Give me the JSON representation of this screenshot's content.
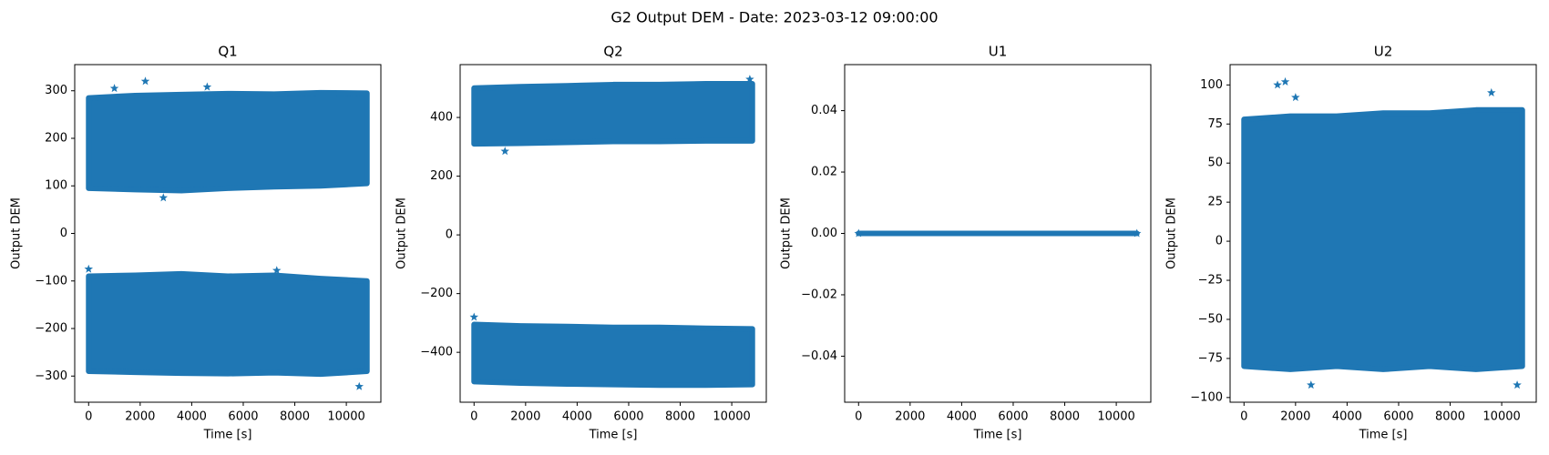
{
  "title": "G2 Output DEM - Date: 2023-03-12 09:00:00",
  "chart_data": [
    {
      "type": "scatter",
      "title": "Q1",
      "xlabel": "Time [s]",
      "ylabel": "Output DEM",
      "color": "#1f77b4",
      "marker": "star",
      "xlim": [
        -540,
        11340
      ],
      "xticks": [
        0,
        2000,
        4000,
        6000,
        8000,
        10000
      ],
      "ylim": [
        -355,
        355
      ],
      "yticks": [
        {
          "value": -300,
          "label": "−300"
        },
        {
          "value": -200,
          "label": "−200"
        },
        {
          "value": -100,
          "label": "−100"
        },
        0,
        100,
        200,
        300
      ],
      "bands": [
        {
          "x": [
            0,
            1800,
            3600,
            5400,
            7200,
            9000,
            10800
          ],
          "low": [
            95,
            92,
            90,
            95,
            98,
            100,
            105
          ],
          "high": [
            285,
            290,
            292,
            294,
            293,
            296,
            295
          ]
        },
        {
          "x": [
            0,
            1800,
            3600,
            5400,
            7200,
            9000,
            10800
          ],
          "low": [
            -290,
            -292,
            -294,
            -295,
            -293,
            -296,
            -290
          ],
          "high": [
            -90,
            -88,
            -85,
            -90,
            -88,
            -95,
            -100
          ]
        }
      ],
      "points": {
        "x": [
          2200,
          4600,
          1000,
          2900,
          7300,
          10500,
          0
        ],
        "y": [
          320,
          308,
          305,
          75,
          -78,
          -322,
          -75
        ]
      }
    },
    {
      "type": "scatter",
      "title": "Q2",
      "xlabel": "Time [s]",
      "ylabel": "Output DEM",
      "color": "#1f77b4",
      "marker": "star",
      "xlim": [
        -540,
        11340
      ],
      "xticks": [
        0,
        2000,
        4000,
        6000,
        8000,
        10000
      ],
      "ylim": [
        -570,
        580
      ],
      "yticks": [
        {
          "value": -400,
          "label": "−400"
        },
        {
          "value": -200,
          "label": "−200"
        },
        0,
        200,
        400
      ],
      "bands": [
        {
          "x": [
            0,
            1800,
            3600,
            5400,
            7200,
            9000,
            10800
          ],
          "low": [
            310,
            312,
            315,
            318,
            318,
            320,
            320
          ],
          "high": [
            500,
            505,
            508,
            512,
            512,
            515,
            515
          ]
        },
        {
          "x": [
            0,
            1800,
            3600,
            5400,
            7200,
            9000,
            10800
          ],
          "low": [
            -500,
            -505,
            -508,
            -510,
            -512,
            -512,
            -510
          ],
          "high": [
            -305,
            -310,
            -312,
            -315,
            -315,
            -318,
            -320
          ]
        }
      ],
      "points": {
        "x": [
          10700,
          1200,
          0
        ],
        "y": [
          530,
          285,
          -280
        ]
      }
    },
    {
      "type": "scatter",
      "title": "U1",
      "xlabel": "Time [s]",
      "ylabel": "Output DEM",
      "color": "#1f77b4",
      "marker": "star",
      "xlim": [
        -540,
        11340
      ],
      "xticks": [
        0,
        2000,
        4000,
        6000,
        8000,
        10000
      ],
      "ylim": [
        -0.055,
        0.055
      ],
      "yticks": [
        {
          "value": -0.04,
          "label": "−0.04"
        },
        {
          "value": -0.02,
          "label": "−0.02"
        },
        {
          "value": 0,
          "label": "0.00"
        },
        {
          "value": 0.02,
          "label": "0.02"
        },
        {
          "value": 0.04,
          "label": "0.04"
        }
      ],
      "bands": [
        {
          "x": [
            0,
            1800,
            3600,
            5400,
            7200,
            9000,
            10800
          ],
          "low": [
            0,
            0,
            0,
            0,
            0,
            0,
            0
          ],
          "high": [
            0,
            0,
            0,
            0,
            0,
            0,
            0
          ]
        }
      ],
      "points": {
        "x": [
          0,
          10800
        ],
        "y": [
          0,
          0
        ]
      }
    },
    {
      "type": "scatter",
      "title": "U2",
      "xlabel": "Time [s]",
      "ylabel": "Output DEM",
      "color": "#1f77b4",
      "marker": "star",
      "xlim": [
        -540,
        11340
      ],
      "xticks": [
        0,
        2000,
        4000,
        6000,
        8000,
        10000
      ],
      "ylim": [
        -103,
        113
      ],
      "yticks": [
        {
          "value": -100,
          "label": "−100"
        },
        {
          "value": -75,
          "label": "−75"
        },
        {
          "value": -50,
          "label": "−50"
        },
        {
          "value": -25,
          "label": "−25"
        },
        0,
        25,
        50,
        75,
        100
      ],
      "bands": [
        {
          "x": [
            0,
            1800,
            3600,
            5400,
            7200,
            9000,
            10800
          ],
          "low": [
            -80,
            -82,
            -80,
            -82,
            -80,
            -82,
            -80
          ],
          "high": [
            78,
            80,
            80,
            82,
            82,
            84,
            84
          ]
        }
      ],
      "points": {
        "x": [
          1300,
          1600,
          2000,
          9600,
          2600,
          10600
        ],
        "y": [
          100,
          102,
          92,
          95,
          -92,
          -92
        ]
      }
    }
  ]
}
